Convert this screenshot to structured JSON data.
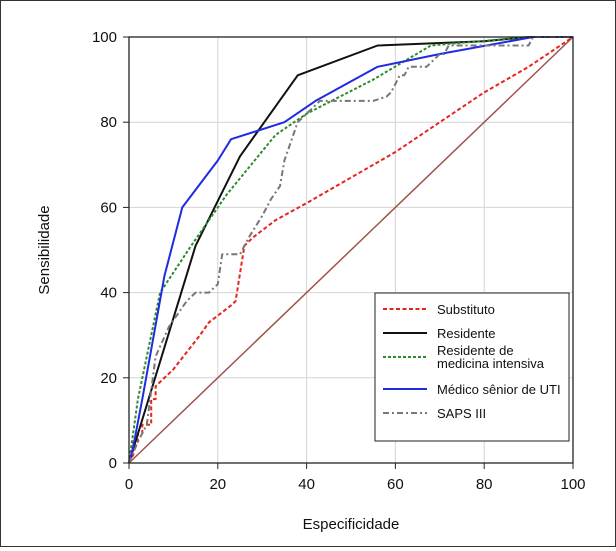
{
  "chart_data": {
    "type": "line",
    "title": "",
    "xlabel": "Especificidade",
    "ylabel": "Sensibilidade",
    "xlim": [
      0,
      100
    ],
    "ylim": [
      0,
      100
    ],
    "xticks": [
      "0",
      "20",
      "40",
      "60",
      "80",
      "100"
    ],
    "yticks": [
      "0",
      "20",
      "40",
      "60",
      "80",
      "100"
    ],
    "grid": true,
    "legend_position": "bottom-right",
    "reference_line": {
      "x": [
        0,
        100
      ],
      "y": [
        0,
        100
      ],
      "color": "#a0524d"
    },
    "series": [
      {
        "name": "Substituto",
        "color": "#e8231b",
        "dash": "dashed",
        "x": [
          0,
          1,
          1,
          2,
          2,
          3,
          3,
          5,
          5,
          6,
          6,
          10,
          16,
          18,
          23,
          24,
          26,
          28,
          33,
          40,
          50,
          60,
          70,
          80,
          90,
          100
        ],
        "y": [
          0,
          2,
          5,
          5,
          7,
          7,
          9,
          9,
          15,
          15,
          18,
          22,
          30,
          33,
          37,
          38,
          51,
          53,
          57,
          61,
          67,
          73,
          80,
          87,
          93,
          100
        ]
      },
      {
        "name": "Residente",
        "color": "#111111",
        "dash": "solid",
        "x": [
          0,
          5,
          10,
          15,
          25,
          38,
          56,
          80,
          90,
          100
        ],
        "y": [
          0,
          17,
          34,
          51,
          72,
          91,
          98,
          99,
          100,
          100
        ]
      },
      {
        "name": "Residente de\nmedicina intensiva",
        "color": "#2e8b2e",
        "dash": "dotted",
        "x": [
          0,
          2,
          7,
          14,
          22,
          33,
          40,
          55,
          68,
          90,
          100
        ],
        "y": [
          0,
          15,
          40,
          51,
          63,
          77,
          82,
          90,
          98,
          100,
          100
        ]
      },
      {
        "name": "Médico sênior de UTI",
        "color": "#1f2be0",
        "dash": "solid",
        "x": [
          0,
          1,
          3,
          8,
          12,
          20,
          23,
          35,
          42,
          56,
          70,
          91,
          100
        ],
        "y": [
          0,
          4,
          15,
          44,
          60,
          71,
          76,
          80,
          85,
          93,
          96,
          100,
          100
        ]
      },
      {
        "name": "SAPS III",
        "color": "#777777",
        "dash": "dashdot",
        "x": [
          0,
          2,
          4,
          6,
          9,
          13,
          15,
          18,
          20,
          21,
          24,
          25,
          27,
          30,
          32,
          34,
          35,
          38,
          40,
          43,
          48,
          55,
          58,
          59,
          60,
          61,
          62,
          63,
          64,
          67,
          68,
          70,
          71,
          72,
          80,
          86,
          90,
          91,
          100
        ],
        "y": [
          0,
          5,
          9,
          25,
          32,
          38,
          40,
          40,
          42,
          49,
          49,
          49,
          53,
          58,
          62,
          65,
          71,
          80,
          82,
          85,
          85,
          85,
          86,
          87,
          89,
          91,
          91,
          93,
          93,
          93,
          94,
          96,
          96,
          98,
          98,
          98,
          98,
          100,
          100
        ]
      }
    ]
  }
}
